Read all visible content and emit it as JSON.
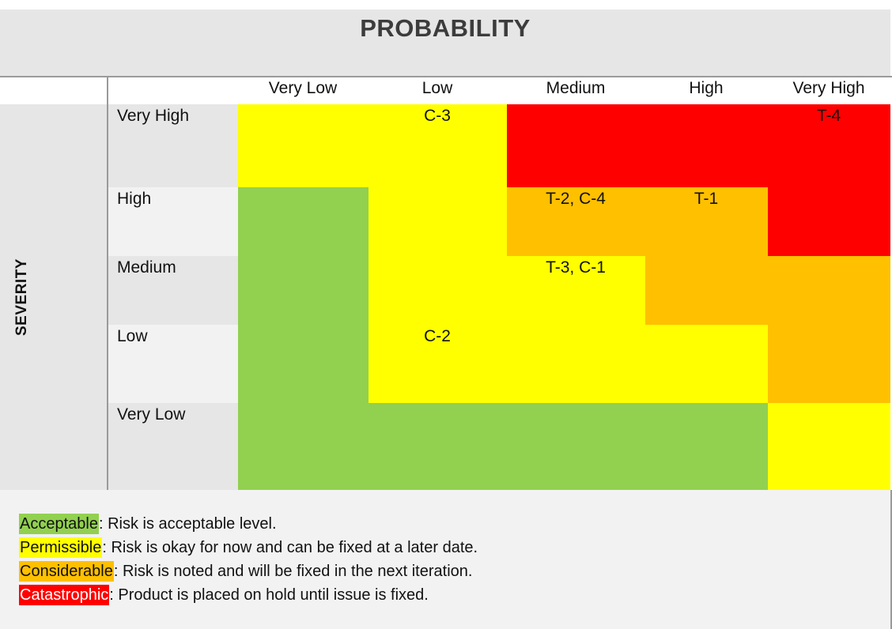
{
  "title": "PROBABILITY",
  "severity_label": "SEVERITY",
  "colors": {
    "acceptable": "#92d050",
    "permissible": "#ffff00",
    "considerable": "#ffc000",
    "catastrophic": "#ff0000",
    "panel": "#e6e6e6",
    "label_light": "#f2f2f2"
  },
  "probability_levels": [
    "Very Low",
    "Low",
    "Medium",
    "High",
    "Very High"
  ],
  "severity_levels": [
    "Very High",
    "High",
    "Medium",
    "Low",
    "Very Low"
  ],
  "matrix": [
    [
      "permissible",
      "permissible",
      "catastrophic",
      "catastrophic",
      "catastrophic"
    ],
    [
      "acceptable",
      "permissible",
      "considerable",
      "considerable",
      "catastrophic"
    ],
    [
      "acceptable",
      "permissible",
      "permissible",
      "considerable",
      "considerable"
    ],
    [
      "acceptable",
      "permissible",
      "permissible",
      "permissible",
      "considerable"
    ],
    [
      "acceptable",
      "acceptable",
      "acceptable",
      "acceptable",
      "permissible"
    ]
  ],
  "risks": [
    [
      "",
      "C-3",
      "",
      "",
      "T-4"
    ],
    [
      "",
      "",
      "T-2, C-4",
      "T-1",
      ""
    ],
    [
      "",
      "",
      "T-3, C-1",
      "",
      ""
    ],
    [
      "",
      "C-2",
      "",
      "",
      ""
    ],
    [
      "",
      "",
      "",
      "",
      ""
    ]
  ],
  "legend": [
    {
      "key": "Acceptable",
      "level": "acceptable",
      "text": ": Risk is acceptable level."
    },
    {
      "key": "Permissible",
      "level": "permissible",
      "text": ": Risk is okay for now and can be fixed at a later date."
    },
    {
      "key": "Considerable",
      "level": "considerable",
      "text": ": Risk is noted and will be fixed in the next iteration."
    },
    {
      "key": "Catastrophic",
      "level": "catastrophic",
      "text": ": Product is placed on hold until issue is fixed."
    }
  ]
}
